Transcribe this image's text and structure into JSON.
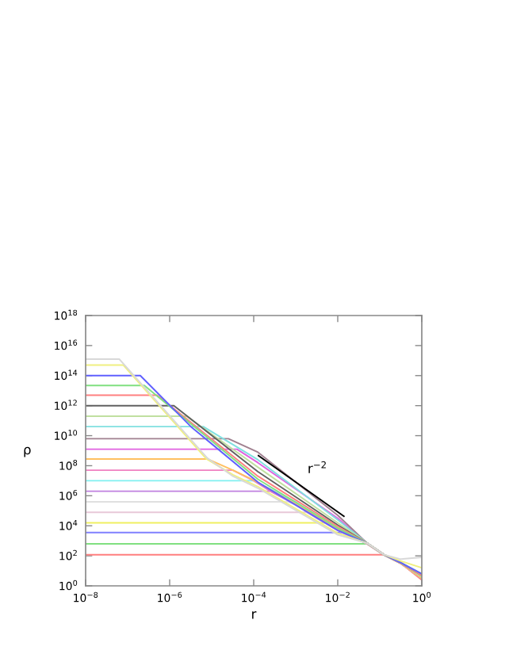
{
  "chart_data": {
    "type": "line",
    "xlabel": "r",
    "ylabel": "ρ",
    "log": "xy",
    "xlim": [
      1e-08,
      1
    ],
    "xticks": [
      {
        "value": 1e-08,
        "label": "10$^{−8}$"
      },
      {
        "value": 1e-06,
        "label": "10$^{−6}$"
      },
      {
        "value": 0.0001,
        "label": "10$^{−4}$"
      },
      {
        "value": 0.01,
        "label": "10$^{−2}$"
      },
      {
        "value": 1,
        "label": "10$^{0}$"
      }
    ],
    "ylim": [
      1,
      1e+18
    ],
    "yticks": [
      {
        "value": 1,
        "label": "10$^{0}$"
      },
      {
        "value": 100.0,
        "label": "10$^{2}$"
      },
      {
        "value": 10000.0,
        "label": "10$^{4}$"
      },
      {
        "value": 1000000.0,
        "label": "10$^{6}$"
      },
      {
        "value": 100000000.0,
        "label": "10$^{8}$"
      },
      {
        "value": 10000000000.0,
        "label": "10$^{10}$"
      },
      {
        "value": 1000000000000.0,
        "label": "10$^{12}$"
      },
      {
        "value": 100000000000000.0,
        "label": "10$^{14}$"
      },
      {
        "value": 1e+16,
        "label": "10$^{16}$"
      },
      {
        "value": 1e+18,
        "label": "10$^{18}$"
      }
    ],
    "annotations": [
      "r$^{−2}$"
    ],
    "series": [
      {
        "color": "#ff7f7f",
        "x": [
          1e-08,
          0.126,
          0.316,
          1
        ],
        "values": [
          117,
          117,
          31.6,
          2.5
        ]
      },
      {
        "color": "#80e080",
        "x": [
          1e-08,
          0.05,
          0.126,
          0.316,
          1
        ],
        "values": [
          631,
          631,
          117,
          31.6,
          3.16
        ]
      },
      {
        "color": "#8080ff",
        "x": [
          1e-08,
          0.0126,
          0.05,
          0.126,
          0.316,
          1
        ],
        "values": [
          3550,
          3550,
          631,
          117,
          31.6,
          3.16
        ]
      },
      {
        "color": "#f0f060",
        "x": [
          1e-08,
          0.005,
          0.01,
          0.05,
          0.126,
          0.316,
          1
        ],
        "values": [
          15800,
          15800,
          5000,
          631,
          117,
          31.6,
          3.16
        ]
      },
      {
        "color": "#e8c8d8",
        "x": [
          1e-08,
          0.0018,
          0.0032,
          0.01,
          0.05,
          0.126,
          0.316,
          1
        ],
        "values": [
          79400,
          79400,
          31600,
          5000,
          631,
          117,
          31.6,
          3.16
        ]
      },
      {
        "color": "#e0e0e0",
        "x": [
          1e-08,
          0.00063,
          0.001,
          0.0032,
          0.01,
          0.05,
          0.126,
          0.316,
          1
        ],
        "values": [
          398000,
          398000,
          251000,
          31600,
          5000,
          631,
          117,
          31.6,
          3.16
        ]
      },
      {
        "color": "#c080e0",
        "x": [
          1e-08,
          0.00025,
          0.001,
          0.0032,
          0.01,
          0.05,
          0.126,
          0.316,
          1
        ],
        "values": [
          2000000.0,
          2000000.0,
          251000,
          31600,
          5000,
          631,
          117,
          31.6,
          3.16
        ]
      },
      {
        "color": "#80f0f0",
        "x": [
          1e-08,
          0.0001,
          0.00025,
          0.001,
          0.01,
          0.05
        ],
        "values": [
          10000000.0,
          10000000.0,
          2800000.0,
          380000,
          6500,
          640
        ]
      },
      {
        "color": "#f080c0",
        "x": [
          1e-08,
          3.2e-05,
          0.0001,
          0.00025,
          0.001,
          0.01,
          0.05,
          0.126,
          0.316,
          1
        ],
        "values": [
          50000000.0,
          50000000.0,
          10000000.0,
          2000000.0,
          260000,
          5500,
          640,
          117,
          31.6,
          3.16
        ]
      },
      {
        "color": "#ffc060",
        "x": [
          1e-08,
          7.9e-06,
          3.2e-05,
          0.0001,
          0.001,
          0.01,
          0.05,
          0.126,
          0.316,
          1
        ],
        "values": [
          280000000.0,
          280000000.0,
          50000000.0,
          11000000.0,
          280000,
          6000,
          650,
          117,
          31.6,
          3.16
        ]
      },
      {
        "color": "#e060e0",
        "x": [
          1e-08,
          4e-05,
          0.000126,
          0.01,
          0.05,
          0.126
        ],
        "values": [
          1260000000.0,
          1260000000.0,
          158000000.0,
          31600,
          700,
          120
        ]
      },
      {
        "color": "#a08090",
        "x": [
          1e-08,
          2.5e-05,
          0.000126,
          0.01,
          0.05,
          0.126,
          0.316,
          1
        ],
        "values": [
          6300000000.0,
          6300000000.0,
          790000000.0,
          50000,
          700,
          120,
          35,
          4
        ]
      },
      {
        "color": "#80e0e0",
        "x": [
          1e-08,
          6.3e-06,
          0.000126,
          0.01,
          0.05,
          0.126,
          0.316,
          1
        ],
        "values": [
          40000000000.0,
          40000000000.0,
          250000000.0,
          25000,
          700,
          120,
          35,
          4
        ]
      },
      {
        "color": "#c0e0a0",
        "x": [
          1e-08,
          2.5e-06,
          0.000126,
          0.01,
          0.05,
          0.126,
          0.316,
          1
        ],
        "values": [
          200000000000.0,
          200000000000.0,
          79000000.0,
          15800,
          700,
          120,
          35,
          4
        ]
      },
      {
        "color": "#606060",
        "x": [
          1e-08,
          1.26e-06,
          0.000126,
          0.01,
          0.05,
          0.126,
          0.316,
          1
        ],
        "values": [
          1000000000000.0,
          1000000000000.0,
          40000000.0,
          11200,
          700,
          120,
          35,
          5
        ]
      },
      {
        "color": "#ff8080",
        "x": [
          1e-08,
          5e-07,
          0.000126,
          0.01,
          0.05,
          0.126,
          0.316,
          1
        ],
        "values": [
          5000000000000.0,
          5000000000000.0,
          20000000.0,
          8900,
          700,
          120,
          35,
          5
        ]
      },
      {
        "color": "#80e080",
        "x": [
          1e-08,
          2.5e-07,
          0.000126,
          0.01,
          0.05,
          0.126,
          0.316,
          1
        ],
        "values": [
          22000000000000.0,
          22000000000000.0,
          12600000.0,
          7100,
          700,
          120,
          35,
          6.3
        ]
      },
      {
        "color": "#6060ff",
        "x": [
          1e-08,
          2e-07,
          3.2e-06,
          0.000126,
          0.01,
          0.05,
          0.126,
          0.316,
          1
        ],
        "values": [
          100000000000000.0,
          100000000000000.0,
          40000000000.0,
          7900000.0,
          5000,
          700,
          120,
          35,
          6.3
        ]
      },
      {
        "color": "#f0f080",
        "x": [
          1e-08,
          7.9e-08,
          7.4e-06,
          3.2e-05,
          0.000126,
          0.01,
          0.05,
          0.126,
          0.316,
          1
        ],
        "values": [
          500000000000000.0,
          500000000000000.0,
          290000000.0,
          25000000.0,
          4000000.0,
          3160,
          700,
          120,
          45,
          15.8
        ]
      },
      {
        "color": "#d8d8d8",
        "x": [
          1e-08,
          6.3e-08,
          7.9e-06,
          3.2e-05,
          0.000126,
          0.01,
          0.05,
          0.126,
          0.316,
          1
        ],
        "values": [
          1260000000000000.0,
          1260000000000000.0,
          320000000.0,
          20000000.0,
          3200000.0,
          2500,
          700,
          120,
          60,
          79
        ]
      },
      {
        "color": "#000000",
        "x": [
          0.00013,
          0.014
        ],
        "values": [
          470000000.0,
          43000
        ]
      }
    ]
  }
}
